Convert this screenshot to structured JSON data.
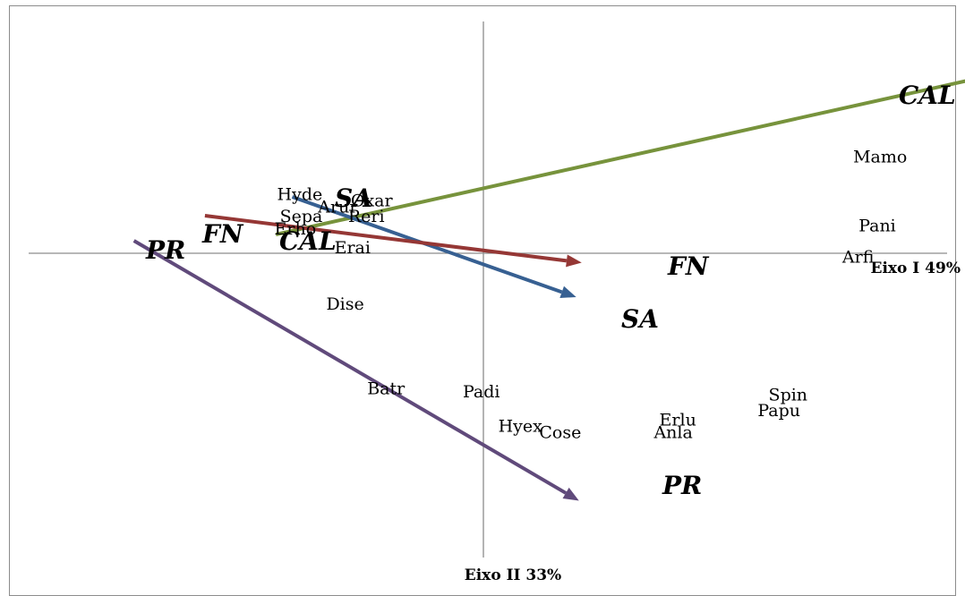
{
  "chart_data": {
    "type": "scatter",
    "title": "",
    "xlabel": "Eixo I 49%",
    "ylabel": "Eixo II 33%",
    "xlim": [
      -1.0,
      1.0
    ],
    "ylim": [
      -1.0,
      0.7
    ],
    "grid": false,
    "legend": "none",
    "species": [
      {
        "label": "Hyde",
        "x": -0.69,
        "y": 0.19
      },
      {
        "label": "Sepa",
        "x": -0.68,
        "y": 0.12
      },
      {
        "label": "Erho",
        "x": -0.7,
        "y": 0.08
      },
      {
        "label": "Arur",
        "x": -0.54,
        "y": 0.15
      },
      {
        "label": "Oxar",
        "x": -0.42,
        "y": 0.17
      },
      {
        "label": "Reri",
        "x": -0.43,
        "y": 0.12
      },
      {
        "label": "Erai",
        "x": -0.48,
        "y": 0.02
      },
      {
        "label": "Dise",
        "x": -0.51,
        "y": -0.16
      },
      {
        "label": "Batr",
        "x": -0.36,
        "y": -0.43
      },
      {
        "label": "Padi",
        "x": -0.01,
        "y": -0.44
      },
      {
        "label": "Hyex",
        "x": 0.12,
        "y": -0.55
      },
      {
        "label": "Cose",
        "x": 0.27,
        "y": -0.57
      },
      {
        "label": "Anla",
        "x": 0.69,
        "y": -0.57
      },
      {
        "label": "Erlu",
        "x": 0.71,
        "y": -0.53
      },
      {
        "label": "Papu",
        "x": 1.07,
        "y": -0.5
      },
      {
        "label": "Spin",
        "x": 1.11,
        "y": -0.45
      },
      {
        "label": "Mamo",
        "x": 1.42,
        "y": 0.31
      },
      {
        "label": "Pani",
        "x": 1.44,
        "y": 0.09
      },
      {
        "label": "Arfi",
        "x": 1.38,
        "y": -0.01
      }
    ],
    "vectors": [
      {
        "name": "CAL",
        "color": "#77933c",
        "x0": -0.76,
        "y0": 0.06,
        "x1": 1.87,
        "y1": 0.57,
        "start_label": "CAL",
        "end_label": "CAL"
      },
      {
        "name": "SA",
        "color": "#376092",
        "x0": -0.7,
        "y0": 0.18,
        "x1": 0.34,
        "y1": -0.14,
        "start_label": "SA",
        "end_label": "SA"
      },
      {
        "name": "FN",
        "color": "#953735",
        "x0": -1.02,
        "y0": 0.12,
        "x1": 0.36,
        "y1": -0.03,
        "start_label": "FN",
        "end_label": "FN"
      },
      {
        "name": "PR",
        "color": "#604a7b",
        "x0": -1.28,
        "y0": 0.04,
        "x1": 0.35,
        "y1": -0.79,
        "start_label": "PR",
        "end_label": "PR"
      }
    ]
  }
}
